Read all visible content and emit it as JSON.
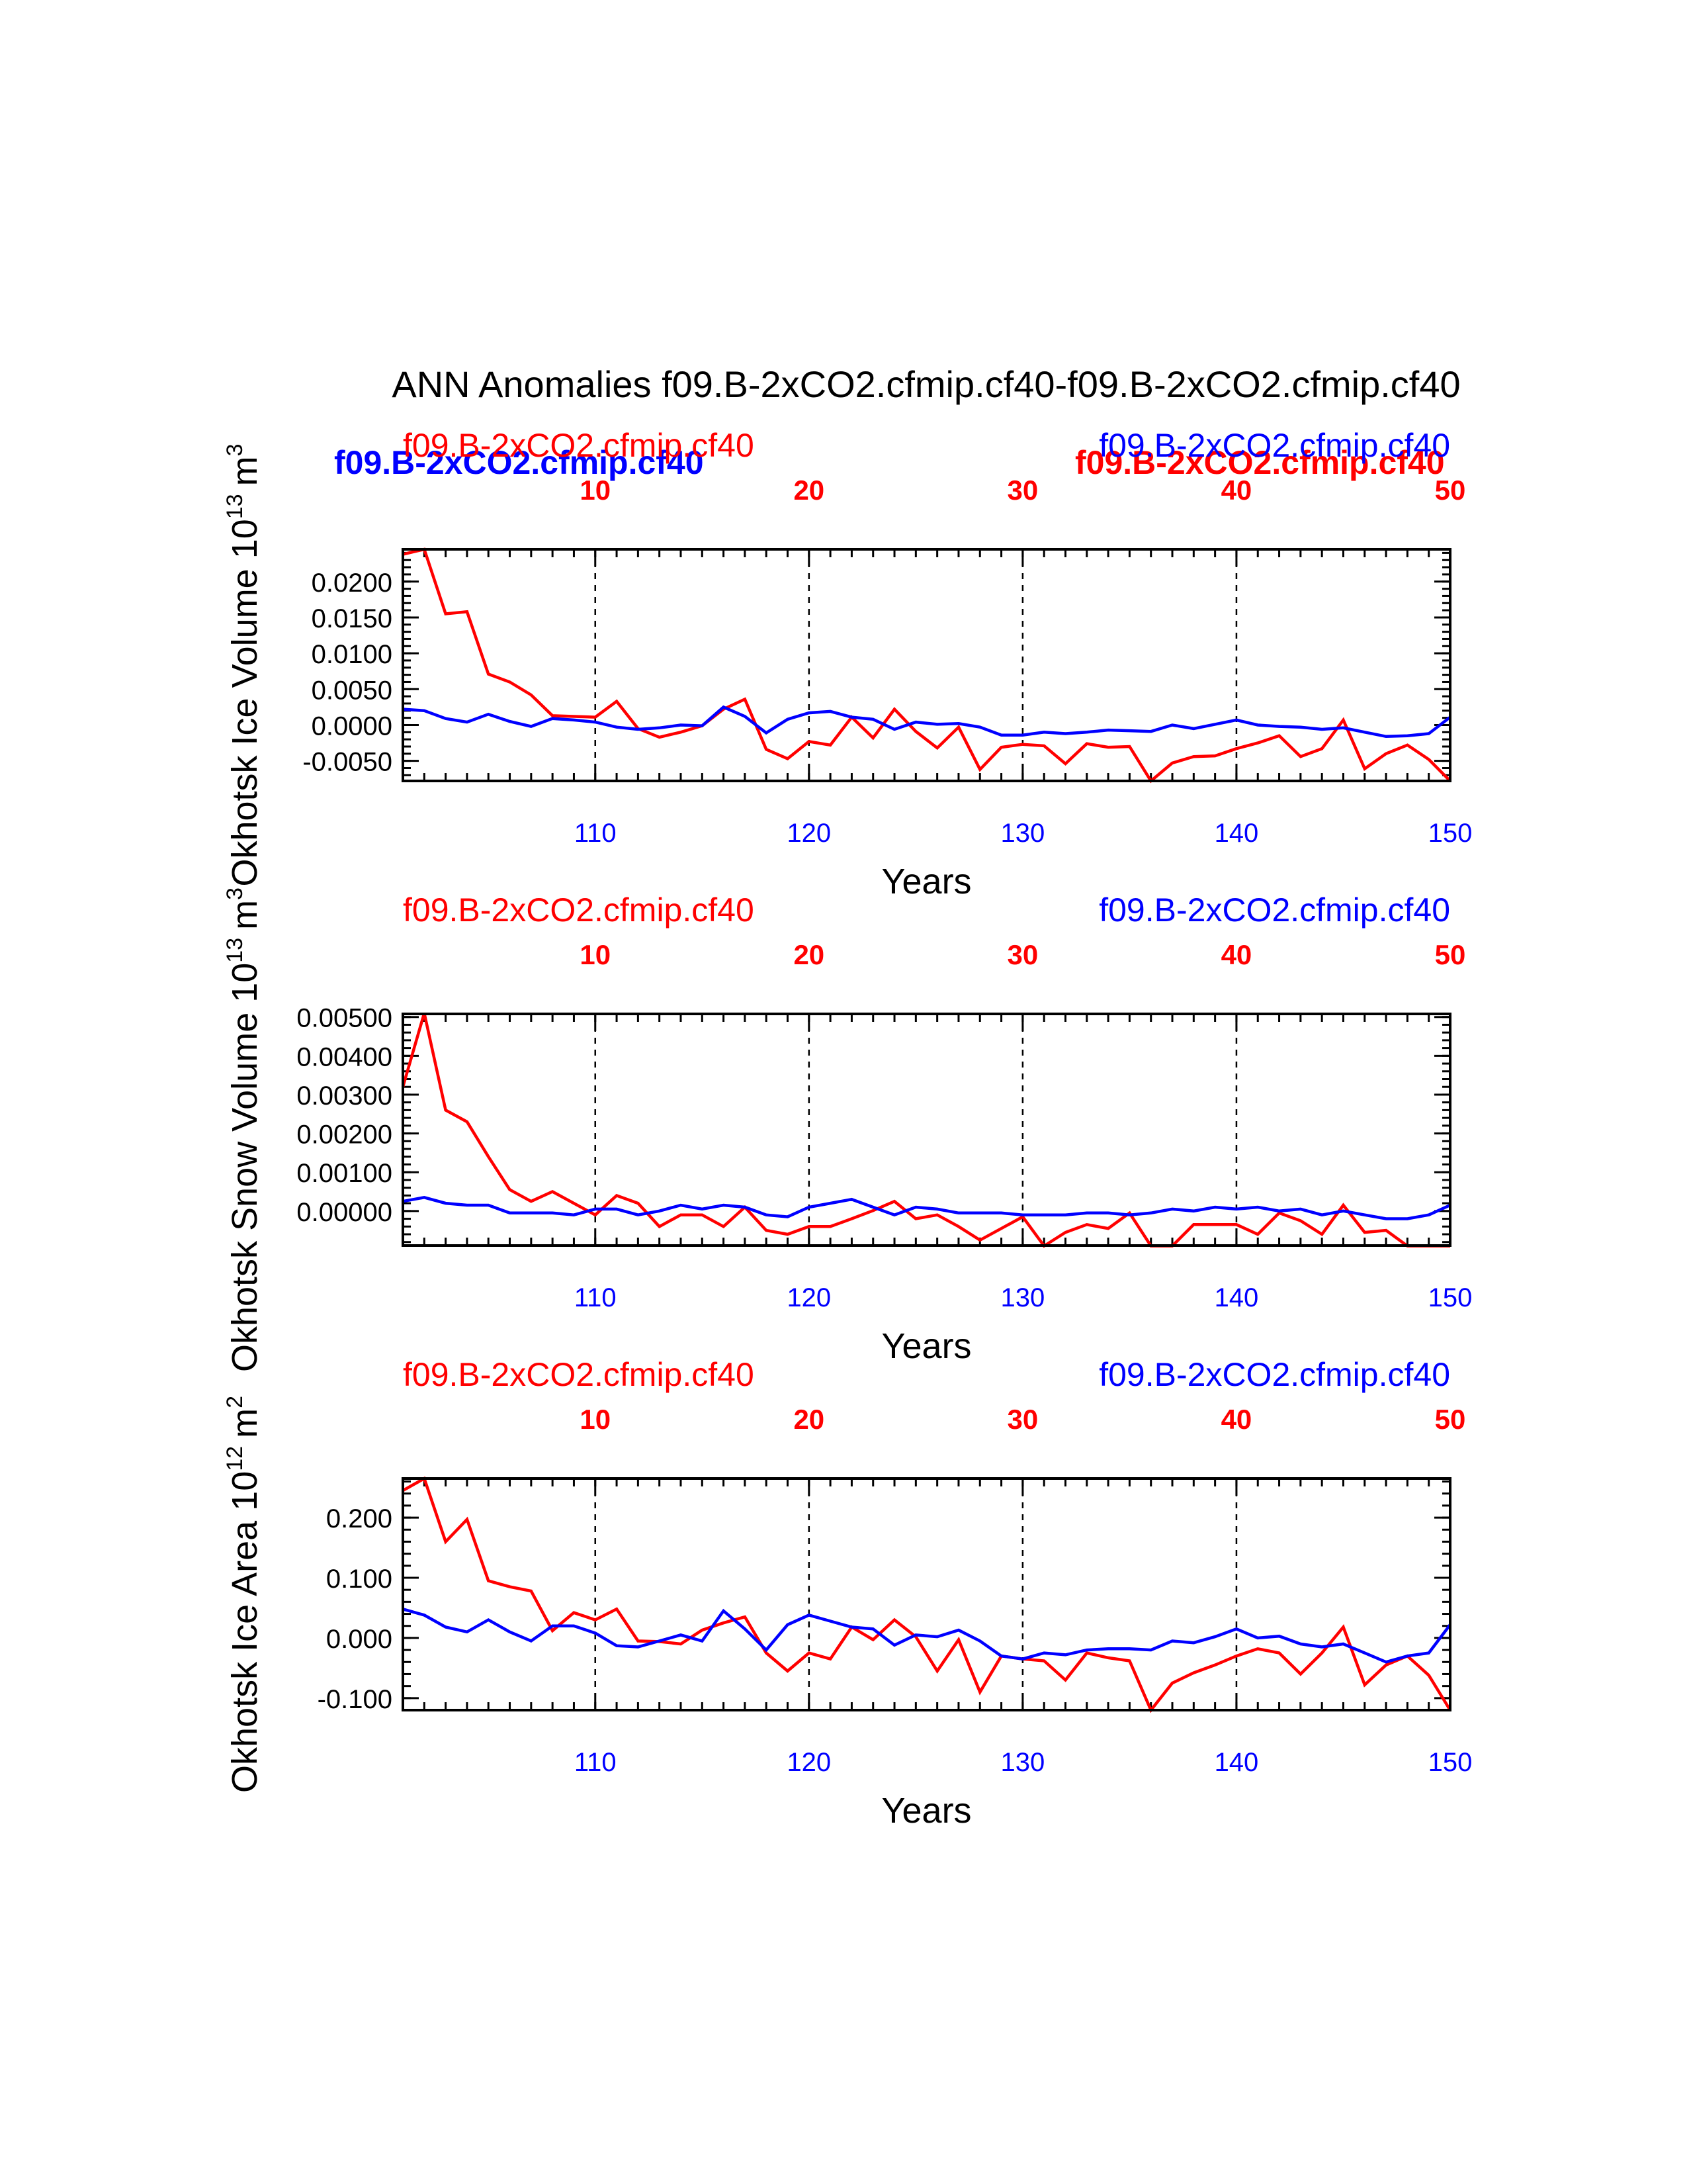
{
  "colors": {
    "case_a": "#ff0000",
    "case_b": "#0000ff",
    "axis": "#000000"
  },
  "chart_data": [
    {
      "type": "line",
      "title": "ANN Anomalies f09.B-2xCO2.cfmip.cf40-f09.B-2xCO2.cfmip.cf40",
      "ylabel": "Okhotsk Ice Volume",
      "ylabel_exp": "10",
      "ylabel_sup": "13",
      "ylabel_units": "m",
      "ylabel_units_sup": "3",
      "xlabel": "Years",
      "top_left_label": "f09.B-2xCO2.cfmip.cf40",
      "top_right_label": "f09.B-2xCO2.cfmip.cf40",
      "top_left_bold": "f09.B-2xCO2.cfmip.cf40",
      "top_right_bold": "f09.B-2xCO2.cfmip.cf40",
      "xlim": [
        101,
        150
      ],
      "ylim": [
        -0.0078,
        0.0245
      ],
      "bottom_ticks": [
        110,
        120,
        130,
        140,
        150
      ],
      "top_ticks": [
        10,
        20,
        30,
        40,
        50
      ],
      "y_ticks": [
        0.02,
        0.015,
        0.01,
        0.005,
        0.0,
        -0.005
      ],
      "y_tick_labels": [
        "0.0200",
        "0.0150",
        "0.0100",
        "0.0050",
        "0.0000",
        "-0.0050"
      ],
      "x": [
        101,
        102,
        103,
        104,
        105,
        106,
        107,
        108,
        109,
        110,
        111,
        112,
        113,
        114,
        115,
        116,
        117,
        118,
        119,
        120,
        121,
        122,
        123,
        124,
        125,
        126,
        127,
        128,
        129,
        130,
        131,
        132,
        133,
        134,
        135,
        136,
        137,
        138,
        139,
        140,
        141,
        142,
        143,
        144,
        145,
        146,
        147,
        148,
        149,
        150
      ],
      "series": [
        {
          "name": "f09.B-2xCO2.cfmip.cf40",
          "color": "#ff0000",
          "values": [
            0.0238,
            0.0245,
            0.0155,
            0.0158,
            0.0071,
            0.006,
            0.0042,
            0.0013,
            0.0012,
            0.0011,
            0.0033,
            -0.0005,
            -0.0017,
            -0.001,
            -0.0001,
            0.0022,
            0.0036,
            -0.0034,
            -0.0047,
            -0.0023,
            -0.0028,
            0.0011,
            -0.0018,
            0.0022,
            -0.0009,
            -0.0032,
            -0.0003,
            -0.0062,
            -0.0031,
            -0.0027,
            -0.0029,
            -0.0054,
            -0.0026,
            -0.0031,
            -0.003,
            -0.0078,
            -0.0053,
            -0.0044,
            -0.0043,
            -0.0033,
            -0.0025,
            -0.0015,
            -0.0044,
            -0.0033,
            0.0007,
            -0.0061,
            -0.004,
            -0.0028,
            -0.0048,
            -0.0078
          ]
        },
        {
          "name": "f09.B-2xCO2.cfmip.cf40",
          "color": "#0000ff",
          "values": [
            0.0022,
            0.002,
            0.0009,
            0.0004,
            0.0015,
            0.0005,
            -0.0002,
            0.0009,
            0.0007,
            0.0004,
            -0.0003,
            -0.0006,
            -0.0004,
            0.0,
            -0.0001,
            0.0025,
            0.0012,
            -0.0011,
            0.0008,
            0.0017,
            0.0019,
            0.0011,
            0.0008,
            -0.0006,
            0.0004,
            0.0001,
            0.0002,
            -0.0003,
            -0.0014,
            -0.0014,
            -0.001,
            -0.0012,
            -0.001,
            -0.0007,
            -0.0008,
            -0.0009,
            0.0,
            -0.0005,
            0.0001,
            0.0007,
            0.0,
            -0.0002,
            -0.0003,
            -0.0006,
            -0.0004,
            -0.001,
            -0.0016,
            -0.0015,
            -0.0012,
            0.0011
          ]
        }
      ]
    },
    {
      "type": "line",
      "ylabel": "Okhotsk Snow Volume",
      "ylabel_exp": "10",
      "ylabel_sup": "13",
      "ylabel_units": "m",
      "ylabel_units_sup": "3",
      "xlabel": "Years",
      "top_left_label": "f09.B-2xCO2.cfmip.cf40",
      "top_right_label": "f09.B-2xCO2.cfmip.cf40",
      "xlim": [
        101,
        150
      ],
      "ylim": [
        -0.00089,
        0.00508
      ],
      "bottom_ticks": [
        110,
        120,
        130,
        140,
        150
      ],
      "top_ticks": [
        10,
        20,
        30,
        40,
        50
      ],
      "y_ticks": [
        0.005,
        0.004,
        0.003,
        0.002,
        0.001,
        0.0
      ],
      "y_tick_labels": [
        "0.00500",
        "0.00400",
        "0.00300",
        "0.00200",
        "0.00100",
        "0.00000"
      ],
      "x": [
        101,
        102,
        103,
        104,
        105,
        106,
        107,
        108,
        109,
        110,
        111,
        112,
        113,
        114,
        115,
        116,
        117,
        118,
        119,
        120,
        121,
        122,
        123,
        124,
        125,
        126,
        127,
        128,
        129,
        130,
        131,
        132,
        133,
        134,
        135,
        136,
        137,
        138,
        139,
        140,
        141,
        142,
        143,
        144,
        145,
        146,
        147,
        148,
        149,
        150
      ],
      "series": [
        {
          "name": "f09.B-2xCO2.cfmip.cf40",
          "color": "#ff0000",
          "values": [
            0.0032,
            0.0051,
            0.0026,
            0.0023,
            0.0014,
            0.00055,
            0.00025,
            0.0005,
            0.0002,
            -0.0001,
            0.0004,
            0.0002,
            -0.0004,
            -0.0001,
            -0.0001,
            -0.0004,
            0.0001,
            -0.0005,
            -0.0006,
            -0.0004,
            -0.0004,
            -0.0002,
            1e-05,
            0.00025,
            -0.0002,
            -0.0001,
            -0.0004,
            -0.00075,
            -0.00045,
            -0.00015,
            -0.0009,
            -0.00055,
            -0.00035,
            -0.00045,
            -5e-05,
            -0.0009,
            -0.0009,
            -0.00035,
            -0.00035,
            -0.00035,
            -0.0006,
            -5e-05,
            -0.00025,
            -0.0006,
            0.00015,
            -0.00055,
            -0.0005,
            -0.0009,
            -0.0009,
            -0.0009
          ]
        },
        {
          "name": "f09.B-2xCO2.cfmip.cf40",
          "color": "#0000ff",
          "values": [
            0.00025,
            0.00035,
            0.0002,
            0.00015,
            0.00015,
            -5e-05,
            -5e-05,
            -5e-05,
            -0.0001,
            5e-05,
            5e-05,
            -0.0001,
            0.0,
            0.00015,
            5e-05,
            0.00015,
            0.0001,
            -0.0001,
            -0.00015,
            0.0001,
            0.0002,
            0.0003,
            0.0001,
            -0.0001,
            0.0001,
            5e-05,
            -5e-05,
            -5e-05,
            -5e-05,
            -0.0001,
            -0.0001,
            -0.0001,
            -5e-05,
            -5e-05,
            -0.0001,
            -5e-05,
            5e-05,
            0.0,
            0.0001,
            5e-05,
            0.0001,
            0.0,
            5e-05,
            -0.0001,
            0.0,
            -0.0001,
            -0.0002,
            -0.0002,
            -0.0001,
            0.00015
          ]
        }
      ]
    },
    {
      "type": "line",
      "ylabel": "Okhotsk Ice Area",
      "ylabel_exp": "10",
      "ylabel_sup": "12",
      "ylabel_units": "m",
      "ylabel_units_sup": "2",
      "xlabel": "Years",
      "top_left_label": "f09.B-2xCO2.cfmip.cf40",
      "top_right_label": "f09.B-2xCO2.cfmip.cf40",
      "xlim": [
        101,
        150
      ],
      "ylim": [
        -0.12,
        0.265
      ],
      "bottom_ticks": [
        110,
        120,
        130,
        140,
        150
      ],
      "top_ticks": [
        10,
        20,
        30,
        40,
        50
      ],
      "y_ticks": [
        0.2,
        0.1,
        0.0,
        -0.1
      ],
      "y_tick_labels": [
        "0.200",
        "0.100",
        "0.000",
        "-0.100"
      ],
      "x": [
        101,
        102,
        103,
        104,
        105,
        106,
        107,
        108,
        109,
        110,
        111,
        112,
        113,
        114,
        115,
        116,
        117,
        118,
        119,
        120,
        121,
        122,
        123,
        124,
        125,
        126,
        127,
        128,
        129,
        130,
        131,
        132,
        133,
        134,
        135,
        136,
        137,
        138,
        139,
        140,
        141,
        142,
        143,
        144,
        145,
        146,
        147,
        148,
        149,
        150
      ],
      "series": [
        {
          "name": "f09.B-2xCO2.cfmip.cf40",
          "color": "#ff0000",
          "values": [
            0.245,
            0.265,
            0.16,
            0.197,
            0.095,
            0.085,
            0.078,
            0.012,
            0.042,
            0.03,
            0.048,
            -0.005,
            -0.006,
            -0.01,
            0.013,
            0.025,
            0.035,
            -0.025,
            -0.055,
            -0.025,
            -0.035,
            0.018,
            -0.003,
            0.03,
            0.002,
            -0.055,
            -0.003,
            -0.09,
            -0.03,
            -0.035,
            -0.038,
            -0.07,
            -0.025,
            -0.033,
            -0.038,
            -0.12,
            -0.075,
            -0.058,
            -0.045,
            -0.03,
            -0.018,
            -0.025,
            -0.06,
            -0.025,
            0.018,
            -0.078,
            -0.045,
            -0.03,
            -0.062,
            -0.12
          ]
        },
        {
          "name": "f09.B-2xCO2.cfmip.cf40",
          "color": "#0000ff",
          "values": [
            0.048,
            0.038,
            0.018,
            0.01,
            0.03,
            0.01,
            -0.005,
            0.02,
            0.02,
            0.008,
            -0.013,
            -0.015,
            -0.005,
            0.005,
            -0.005,
            0.045,
            0.015,
            -0.02,
            0.022,
            0.038,
            0.028,
            0.018,
            0.015,
            -0.012,
            0.005,
            0.002,
            0.013,
            -0.005,
            -0.03,
            -0.035,
            -0.025,
            -0.028,
            -0.02,
            -0.018,
            -0.018,
            -0.02,
            -0.005,
            -0.008,
            0.002,
            0.015,
            0.0,
            0.003,
            -0.01,
            -0.015,
            -0.01,
            -0.025,
            -0.04,
            -0.03,
            -0.025,
            0.022
          ]
        }
      ]
    }
  ]
}
